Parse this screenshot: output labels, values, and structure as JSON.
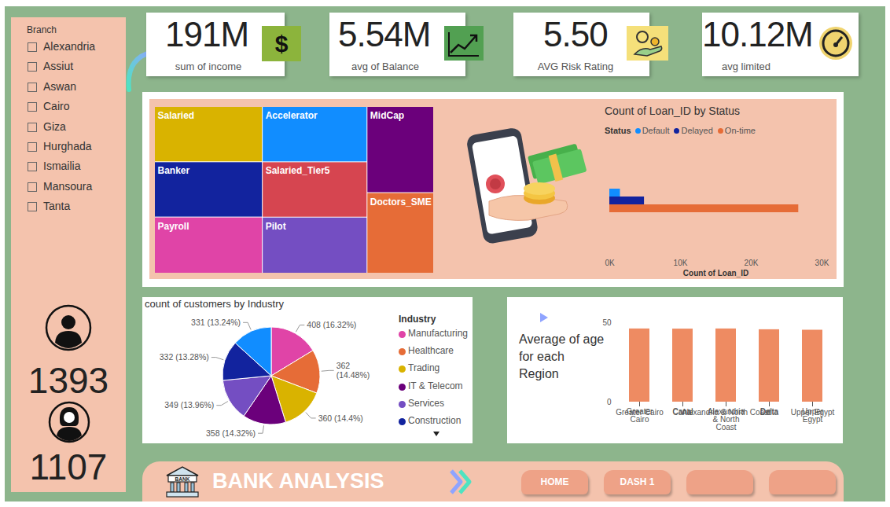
{
  "page": {
    "slicer": {
      "title": "Branch",
      "items": [
        "Alexandria",
        "Assiut",
        "Aswan",
        "Cairo",
        "Giza",
        "Hurghada",
        "Ismailia",
        "Mansoura",
        "Tanta"
      ]
    },
    "counts": [
      1393,
      1107
    ],
    "kpis": [
      {
        "value": "191M",
        "label": "sum of income",
        "icon": "$"
      },
      {
        "value": "5.54M",
        "label": "avg of Balance"
      },
      {
        "value": "5.50",
        "label": "AVG Risk Rating"
      },
      {
        "value": "10.12M",
        "label": "avg limited"
      }
    ],
    "nav": {
      "title": "BANK ANALYSIS",
      "icon_label": "BANK",
      "buttons": [
        "HOME",
        "DASH 1",
        null,
        null
      ]
    }
  },
  "chart_data": [
    {
      "type": "treemap",
      "categories": [
        "Salaried",
        "Banker",
        "Payroll",
        "Accelerator",
        "Salaried_Tier5",
        "Pilot",
        "MidCap",
        "Doctors_SME"
      ],
      "values": [
        320,
        320,
        325,
        311,
        311,
        315,
        308,
        288
      ],
      "colors": [
        "#d9b300",
        "#12239e",
        "#e044a7",
        "#118dff",
        "#d64550",
        "#744ec2",
        "#6b007b",
        "#e66c37"
      ],
      "tick_labels": false
    },
    {
      "type": "bar",
      "orientation": "horizontal",
      "title": "Count of Loan_ID by Status",
      "legend_title": "Status",
      "categories": [
        "Default",
        "Delayed",
        "On-time"
      ],
      "values": [
        1500,
        4900,
        26700
      ],
      "colors": [
        "#118dff",
        "#12239e",
        "#e66c37"
      ],
      "xlabel": "Count of Loan_ID",
      "xlim": [
        0,
        30000
      ],
      "xticks": [
        {
          "value": 0,
          "label": "0K"
        },
        {
          "value": 10000,
          "label": "10K"
        },
        {
          "value": 20000,
          "label": "20K"
        },
        {
          "value": 30000,
          "label": "30K"
        }
      ],
      "legend": "top",
      "tick_labels": "x",
      "grid": false
    },
    {
      "type": "pie",
      "title": "count of customers by Industry",
      "legend_title": "Industry",
      "categories": [
        "Manufacturing",
        "Healthcare",
        "Trading",
        "IT & Telecom",
        "Services",
        "Construction",
        null
      ],
      "values": [
        408,
        362,
        360,
        358,
        349,
        332,
        331
      ],
      "value_labels": [
        "408 (16.32%)",
        "362 (14.48%)",
        "360 (14.4%)",
        "358 (14.32%)",
        "349 (13.96%)",
        "332 (13.28%)",
        "331 (13.24%)"
      ],
      "colors": [
        "#e044a7",
        "#e66c37",
        "#d9b300",
        "#6b007b",
        "#744ec2",
        "#12239e",
        "#118dff"
      ],
      "data_labels": true,
      "legend": "right"
    },
    {
      "type": "bar",
      "title": "Average of age for each Region",
      "categories": [
        "Greater Cairo",
        "Canal",
        "Alexandria & North Coast",
        "Delta",
        "Upper Egypt"
      ],
      "values": [
        46.1,
        46.0,
        46.1,
        45.6,
        45.3
      ],
      "color": "#ee8b62",
      "ylim": [
        0,
        50
      ],
      "yticks": [
        0,
        50
      ],
      "grid": false
    }
  ]
}
